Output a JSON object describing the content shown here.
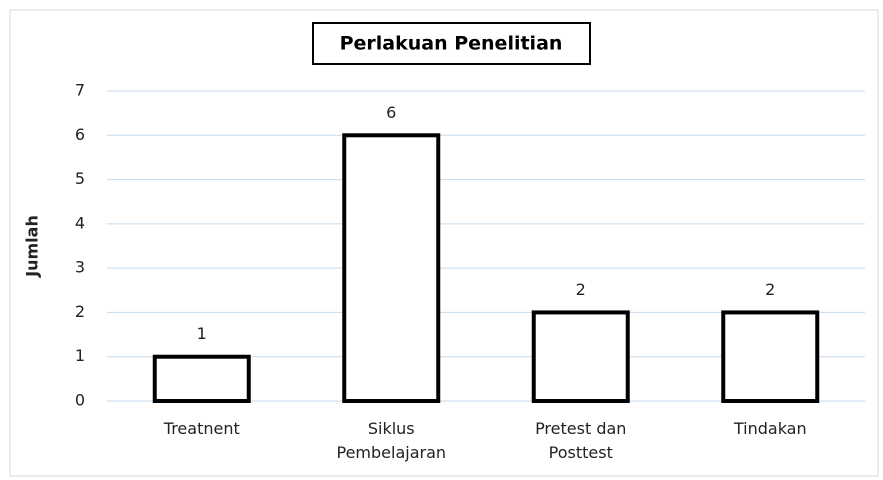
{
  "chart_data": {
    "type": "bar",
    "title": "Perlakuan Penelitian",
    "y_label": "Jumlah",
    "categories": [
      "Treatnent",
      "Siklus Pembelajaran",
      "Pretest dan Posttest",
      "Tindakan"
    ],
    "values": [
      1,
      6,
      2,
      2
    ],
    "color": "#ffffff",
    "edge_color": "#000000",
    "ylim": [
      0,
      7
    ],
    "yticks": [
      0,
      1,
      2,
      3,
      4,
      5,
      6,
      7
    ],
    "grid": true
  }
}
